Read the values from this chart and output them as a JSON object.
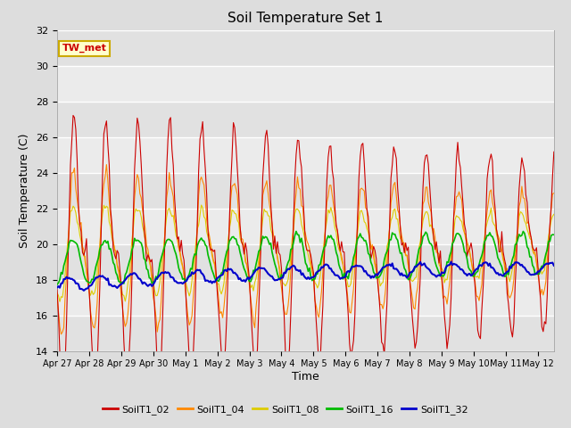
{
  "title": "Soil Temperature Set 1",
  "xlabel": "Time",
  "ylabel": "Soil Temperature (C)",
  "ylim": [
    14,
    32
  ],
  "yticks": [
    14,
    16,
    18,
    20,
    22,
    24,
    26,
    28,
    30,
    32
  ],
  "background_color": "#dddddd",
  "plot_bg_color": "#ebebeb",
  "series_colors": {
    "SoilT1_02": "#cc0000",
    "SoilT1_04": "#ff8800",
    "SoilT1_08": "#ddcc00",
    "SoilT1_16": "#00bb00",
    "SoilT1_32": "#0000cc"
  },
  "legend_label": "TW_met",
  "legend_box_color": "#ffffcc",
  "legend_box_edge": "#ccaa00",
  "x_tick_labels": [
    "Apr 27",
    "Apr 28",
    "Apr 29",
    "Apr 30",
    "May 1",
    "May 2",
    "May 3",
    "May 4",
    "May 5",
    "May 6",
    "May 7",
    "May 8",
    "May 9",
    "May 10",
    "May 11",
    "May 12"
  ],
  "num_days": 15.5
}
